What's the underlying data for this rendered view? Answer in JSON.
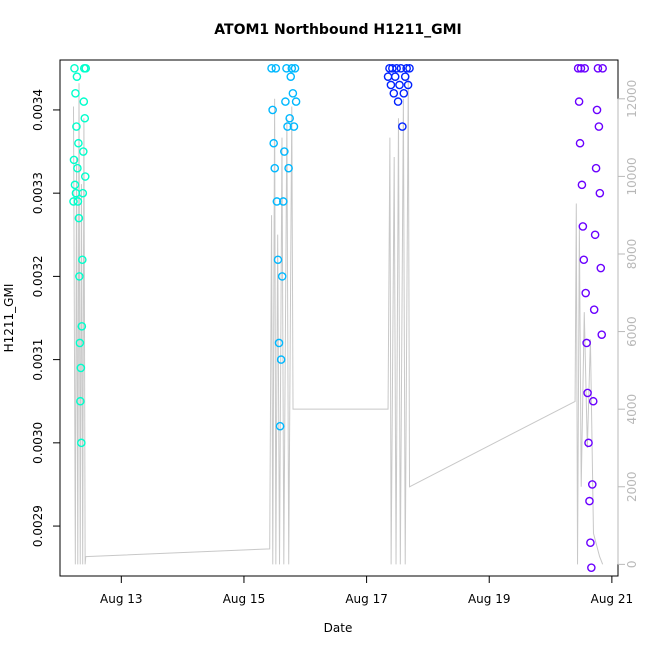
{
  "chart_data": {
    "type": "scatter",
    "title": "ATOM1 Northbound H1211_GMI",
    "xlabel": "Date",
    "ylabel": "H1211_GMI",
    "x_ticks": [
      "Aug 13",
      "Aug 15",
      "Aug 17",
      "Aug 19",
      "Aug 21"
    ],
    "x_tick_days": [
      13,
      15,
      17,
      19,
      21
    ],
    "xlim_days": [
      12.0,
      21.1
    ],
    "ylim": [
      0.00284,
      0.00346
    ],
    "y_ticks": [
      0.0029,
      0.003,
      0.0031,
      0.0032,
      0.0033,
      0.0034
    ],
    "y_tick_labels": [
      "0.0029",
      "0.0030",
      "0.0031",
      "0.0032",
      "0.0033",
      "0.0034"
    ],
    "y2lim": [
      -300,
      13000
    ],
    "y2_ticks": [
      0,
      2000,
      4000,
      6000,
      8000,
      10000,
      12000
    ],
    "y2_tick_labels": [
      "0",
      "2000",
      "4000",
      "6000",
      "8000",
      "10000",
      "12000"
    ],
    "grid": false,
    "series": [
      {
        "color": "#00ffcc",
        "start_day": 12.22,
        "end_day": 12.42,
        "values": [
          0.00329,
          0.00334,
          0.00345,
          0.00331,
          0.00342,
          0.0033,
          0.00338,
          0.00344,
          0.00333,
          0.00329,
          0.00336,
          0.00327,
          0.0032,
          0.00312,
          0.00305,
          0.00309,
          0.003,
          0.00314,
          0.00322,
          0.0033,
          0.00335,
          0.00341,
          0.00345,
          0.00339,
          0.00332,
          0.00345
        ]
      },
      {
        "color": "#00b8ff",
        "start_day": 15.45,
        "end_day": 15.85,
        "values": [
          0.00345,
          0.0034,
          0.00336,
          0.00333,
          0.00345,
          0.00329,
          0.00322,
          0.00312,
          0.00302,
          0.0031,
          0.0032,
          0.00329,
          0.00335,
          0.00341,
          0.00345,
          0.00338,
          0.00333,
          0.00339,
          0.00344,
          0.00345,
          0.00342,
          0.00338,
          0.00345,
          0.00341
        ]
      },
      {
        "color": "#0022ff",
        "start_day": 17.35,
        "end_day": 17.7,
        "values": [
          0.00344,
          0.00345,
          0.00343,
          0.00345,
          0.00342,
          0.00344,
          0.00345,
          0.00341,
          0.00343,
          0.00345,
          0.00338,
          0.00342,
          0.00344,
          0.00345,
          0.00343,
          0.00345
        ]
      },
      {
        "color": "#6a00ff",
        "start_day": 20.45,
        "end_day": 20.85,
        "values": [
          0.00345,
          0.00341,
          0.00336,
          0.00345,
          0.00331,
          0.00326,
          0.00322,
          0.00345,
          0.00318,
          0.00312,
          0.00306,
          0.003,
          0.00293,
          0.00288,
          0.00285,
          0.00295,
          0.00305,
          0.00316,
          0.00325,
          0.00333,
          0.0034,
          0.00345,
          0.00338,
          0.0033,
          0.00321,
          0.00313,
          0.00345
        ]
      }
    ],
    "secondary_line": {
      "color": "#c8c8c8",
      "points": [
        [
          12.22,
          11800
        ],
        [
          12.25,
          0
        ],
        [
          12.27,
          10500
        ],
        [
          12.29,
          0
        ],
        [
          12.31,
          12400
        ],
        [
          12.33,
          0
        ],
        [
          12.35,
          9800
        ],
        [
          12.37,
          0
        ],
        [
          12.39,
          11500
        ],
        [
          12.41,
          0
        ],
        [
          12.42,
          200
        ],
        [
          15.42,
          400
        ],
        [
          15.45,
          9000
        ],
        [
          15.47,
          0
        ],
        [
          15.5,
          12000
        ],
        [
          15.52,
          0
        ],
        [
          15.55,
          8500
        ],
        [
          15.58,
          0
        ],
        [
          15.62,
          11000
        ],
        [
          15.65,
          0
        ],
        [
          15.7,
          11500
        ],
        [
          15.73,
          0
        ],
        [
          15.78,
          11800
        ],
        [
          15.8,
          4000
        ],
        [
          17.35,
          4000
        ],
        [
          17.38,
          11000
        ],
        [
          17.4,
          0
        ],
        [
          17.45,
          10500
        ],
        [
          17.48,
          0
        ],
        [
          17.52,
          11500
        ],
        [
          17.55,
          0
        ],
        [
          17.6,
          12000
        ],
        [
          17.63,
          0
        ],
        [
          17.68,
          12600
        ],
        [
          17.7,
          2000
        ],
        [
          20.4,
          4200
        ],
        [
          20.42,
          9300
        ],
        [
          20.44,
          0
        ],
        [
          20.47,
          8700
        ],
        [
          20.5,
          2000
        ],
        [
          20.55,
          6500
        ],
        [
          20.6,
          3000
        ],
        [
          20.65,
          5800
        ],
        [
          20.7,
          800
        ],
        [
          20.75,
          500
        ],
        [
          20.8,
          200
        ],
        [
          20.85,
          0
        ]
      ]
    }
  }
}
